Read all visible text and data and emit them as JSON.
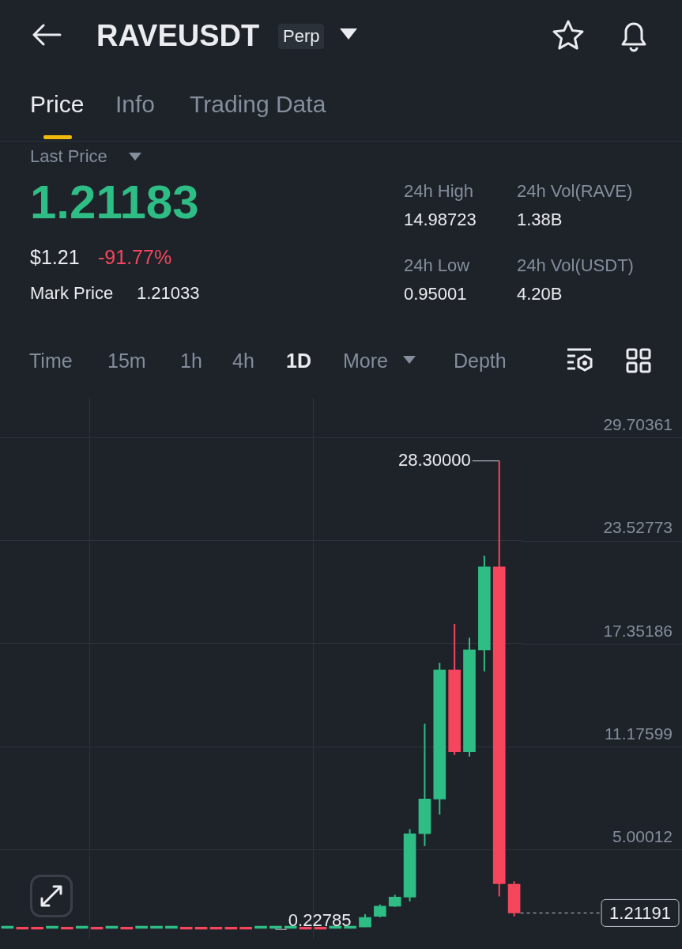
{
  "chart_data": {
    "type": "candlestick",
    "title": "RAVEUSDT",
    "subtitle": "Perp",
    "categories": [
      null,
      null,
      null,
      null,
      null,
      null,
      null,
      null,
      null,
      null,
      null,
      null,
      null,
      null,
      null,
      null,
      null,
      null,
      null,
      null,
      null,
      null,
      null,
      null,
      null,
      null,
      null,
      null,
      null,
      null,
      null,
      null,
      null,
      null,
      null
    ],
    "ohlc": [
      [
        0.29,
        0.43,
        0.28,
        0.42
      ],
      [
        0.36,
        0.37,
        0.23,
        0.24
      ],
      [
        0.36,
        0.37,
        0.23,
        0.24
      ],
      [
        0.29,
        0.43,
        0.28,
        0.42
      ],
      [
        0.36,
        0.37,
        0.23,
        0.24
      ],
      [
        0.29,
        0.43,
        0.28,
        0.42
      ],
      [
        0.36,
        0.37,
        0.23,
        0.24
      ],
      [
        0.29,
        0.43,
        0.28,
        0.42
      ],
      [
        0.36,
        0.37,
        0.23,
        0.24
      ],
      [
        0.29,
        0.43,
        0.28,
        0.42
      ],
      [
        0.29,
        0.43,
        0.28,
        0.42
      ],
      [
        0.29,
        0.43,
        0.28,
        0.42
      ],
      [
        0.36,
        0.37,
        0.23,
        0.24
      ],
      [
        0.36,
        0.37,
        0.23,
        0.24
      ],
      [
        0.36,
        0.37,
        0.23,
        0.24
      ],
      [
        0.36,
        0.37,
        0.23,
        0.24
      ],
      [
        0.36,
        0.37,
        0.23,
        0.24
      ],
      [
        0.29,
        0.43,
        0.28,
        0.42
      ],
      [
        0.29,
        0.43,
        0.22785,
        0.42
      ],
      [
        0.29,
        0.43,
        0.28,
        0.42
      ],
      [
        0.36,
        0.37,
        0.23,
        0.24
      ],
      [
        0.36,
        0.37,
        0.23,
        0.24
      ],
      [
        0.29,
        0.43,
        0.28,
        0.42
      ],
      [
        0.29,
        0.43,
        0.28,
        0.42
      ],
      [
        0.37,
        1.14,
        0.37,
        0.95
      ],
      [
        1.01,
        1.72,
        0.95,
        1.62
      ],
      [
        1.62,
        2.3,
        1.57,
        2.16
      ],
      [
        2.16,
        6.24,
        1.91,
        5.96
      ],
      [
        5.96,
        12.56,
        5.22,
        8.04
      ],
      [
        8.04,
        16.2,
        7.11,
        15.78
      ],
      [
        15.78,
        18.53,
        10.68,
        10.87
      ],
      [
        10.87,
        17.7,
        10.58,
        16.97
      ],
      [
        16.97,
        22.62,
        15.68,
        21.95
      ],
      [
        21.95,
        28.3,
        2.2,
        2.97
      ],
      [
        2.93,
        3.11,
        1.01,
        1.21191
      ]
    ],
    "ylim": [
      -0.35,
      32.1
    ],
    "yticks": [
      5.00012,
      11.17599,
      17.35186,
      23.52773,
      29.70361
    ],
    "grid": true,
    "legend": false,
    "ref_lines": [
      {
        "axis": "y",
        "value": 1.21191,
        "label": "1.21191",
        "line_style": "dashed"
      }
    ],
    "annotations": [
      "Price",
      "Info",
      "Trading Data",
      "Last Price",
      "1.21183",
      "$1.21",
      "-91.77%",
      "Mark Price",
      "1.21033",
      "24h High",
      "14.98723",
      "24h Low",
      "0.95001",
      "24h Vol(RAVE)",
      "1.38B",
      "24h Vol(USDT)",
      "4.20B",
      "Time",
      "15m",
      "1h",
      "4h",
      "1D",
      "More",
      "Depth",
      "28.30000",
      "0.22785"
    ]
  }
}
